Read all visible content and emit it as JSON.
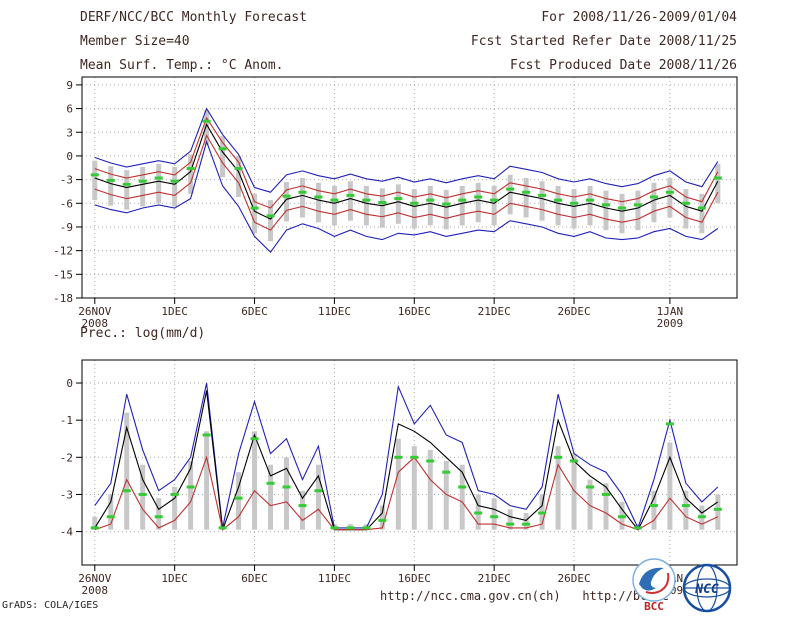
{
  "header": {
    "title": "DERF/NCC/BCC Monthly Forecast",
    "member_size": "Member Size=40",
    "for_range": "For 2008/11/26-2009/01/04",
    "refer_date": "Fcst Started Refer Date 2008/11/25",
    "produced_date": "Fcst Produced Date 2008/11/26"
  },
  "footer": {
    "grads_credit": "GrADS: COLA/IGES",
    "ncc_url": "http://ncc.cma.gov.cn(ch)",
    "bcc_url": "http://bcc.c",
    "bcc_logo_text": "BCC",
    "ncc_logo_text": "NCC"
  },
  "colors": {
    "text": "#3f2723",
    "frame": "#000000",
    "grid": "#aaaaaa",
    "bar_gray": "#c8c8c8",
    "envelope_blue": "#2020bb",
    "quartile_red": "#c03030",
    "mean_black": "#000000",
    "median_green": "#33cc33"
  },
  "chart_data": [
    {
      "type": "line",
      "title": "Mean Surf. Temp.: °C Anom.",
      "ylim": [
        -18,
        10
      ],
      "yticks": [
        9,
        6,
        3,
        0,
        -3,
        -6,
        -9,
        -12,
        -15,
        -18
      ],
      "xlim": [
        -0.8,
        40.2
      ],
      "xticks": [
        {
          "day": 0,
          "label": "26NOV",
          "sub": "2008"
        },
        {
          "day": 5,
          "label": "1DEC"
        },
        {
          "day": 10,
          "label": "6DEC"
        },
        {
          "day": 15,
          "label": "11DEC"
        },
        {
          "day": 20,
          "label": "16DEC"
        },
        {
          "day": 25,
          "label": "21DEC"
        },
        {
          "day": 30,
          "label": "26DEC"
        },
        {
          "day": 36,
          "label": "1JAN",
          "sub": "2009"
        }
      ],
      "series": {
        "bar_hi": [
          -0.6,
          -1.3,
          -1.8,
          -1.4,
          -1.0,
          -1.4,
          0.2,
          5.8,
          2.5,
          0.0,
          -4.8,
          -5.6,
          -3.3,
          -2.8,
          -3.4,
          -3.8,
          -3.2,
          -3.8,
          -4.1,
          -3.6,
          -4.2,
          -3.8,
          -4.3,
          -3.8,
          -3.4,
          -3.8,
          -2.4,
          -2.8,
          -3.2,
          -3.8,
          -4.2,
          -3.8,
          -4.4,
          -4.8,
          -4.4,
          -3.4,
          -2.8,
          -4.2,
          -4.8,
          -1.0
        ],
        "bar_lo": [
          -5.6,
          -6.3,
          -6.8,
          -6.4,
          -6.0,
          -6.4,
          -4.8,
          1.4,
          -2.7,
          -5.2,
          -9.8,
          -10.8,
          -8.3,
          -7.8,
          -8.4,
          -8.8,
          -8.2,
          -8.8,
          -9.1,
          -8.6,
          -9.2,
          -8.8,
          -9.3,
          -8.8,
          -8.4,
          -8.8,
          -7.4,
          -7.8,
          -8.2,
          -8.8,
          -9.2,
          -8.8,
          -9.4,
          -9.8,
          -9.4,
          -8.4,
          -7.8,
          -9.2,
          -9.8,
          -6.0
        ],
        "max_blue": [
          -0.2,
          -0.9,
          -1.4,
          -1.0,
          -0.6,
          -1.0,
          0.6,
          6.0,
          2.7,
          0.2,
          -4.0,
          -4.6,
          -2.4,
          -1.9,
          -2.5,
          -2.9,
          -2.3,
          -2.9,
          -3.2,
          -2.7,
          -3.3,
          -2.9,
          -3.4,
          -2.9,
          -2.5,
          -2.9,
          -1.3,
          -1.7,
          -2.1,
          -2.9,
          -3.3,
          -2.9,
          -3.5,
          -3.9,
          -3.5,
          -2.5,
          -1.9,
          -3.3,
          -3.9,
          -0.7
        ],
        "upper_red": [
          -1.6,
          -2.3,
          -2.8,
          -2.4,
          -2.0,
          -2.4,
          -0.8,
          4.8,
          1.7,
          -0.8,
          -5.8,
          -6.6,
          -4.3,
          -3.8,
          -4.4,
          -4.8,
          -4.2,
          -4.8,
          -5.1,
          -4.6,
          -5.2,
          -4.8,
          -5.3,
          -4.8,
          -4.4,
          -4.8,
          -3.4,
          -3.8,
          -4.2,
          -4.8,
          -5.2,
          -4.8,
          -5.4,
          -5.8,
          -5.4,
          -4.4,
          -3.8,
          -5.2,
          -5.8,
          -2.0
        ],
        "mean_black": [
          -2.8,
          -3.5,
          -4.0,
          -3.6,
          -3.2,
          -3.6,
          -2.0,
          4.0,
          0.5,
          -2.0,
          -7.0,
          -8.0,
          -5.5,
          -5.0,
          -5.6,
          -6.0,
          -5.4,
          -6.0,
          -6.3,
          -5.8,
          -6.4,
          -6.0,
          -6.5,
          -6.0,
          -5.6,
          -6.0,
          -4.6,
          -5.0,
          -5.4,
          -6.0,
          -6.4,
          -6.0,
          -6.6,
          -7.0,
          -6.6,
          -5.6,
          -5.0,
          -6.4,
          -7.0,
          -3.2
        ],
        "lower_red": [
          -4.2,
          -4.9,
          -5.4,
          -5.0,
          -4.6,
          -5.0,
          -3.4,
          2.6,
          -0.9,
          -3.4,
          -8.4,
          -9.4,
          -6.9,
          -6.4,
          -7.0,
          -7.4,
          -6.8,
          -7.4,
          -7.7,
          -7.2,
          -7.8,
          -7.4,
          -7.9,
          -7.4,
          -7.0,
          -7.4,
          -6.0,
          -6.4,
          -6.8,
          -7.4,
          -7.8,
          -7.4,
          -8.0,
          -8.4,
          -8.0,
          -7.0,
          -6.4,
          -7.8,
          -8.4,
          -4.6
        ],
        "min_blue": [
          -6.2,
          -6.8,
          -7.2,
          -6.6,
          -6.2,
          -6.6,
          -5.4,
          1.8,
          -3.8,
          -6.4,
          -10.2,
          -12.2,
          -9.4,
          -8.6,
          -9.2,
          -10.2,
          -9.4,
          -10.2,
          -10.6,
          -9.8,
          -10.0,
          -9.6,
          -10.2,
          -9.8,
          -9.4,
          -9.6,
          -8.2,
          -8.6,
          -9.0,
          -9.8,
          -10.2,
          -9.6,
          -10.4,
          -10.6,
          -10.4,
          -9.6,
          -9.2,
          -10.2,
          -10.6,
          -9.2
        ],
        "median_green": [
          -2.4,
          -3.1,
          -3.6,
          -3.2,
          -2.8,
          -3.2,
          -1.6,
          4.4,
          0.9,
          -1.6,
          -6.6,
          -7.6,
          -5.1,
          -4.6,
          -5.2,
          -5.6,
          -5.0,
          -5.6,
          -5.9,
          -5.4,
          -6.0,
          -5.6,
          -6.1,
          -5.6,
          -5.2,
          -5.6,
          -4.2,
          -4.6,
          -5.0,
          -5.6,
          -6.0,
          -5.6,
          -6.2,
          -6.6,
          -6.2,
          -5.2,
          -4.6,
          -6.0,
          -6.6,
          -2.8
        ]
      }
    },
    {
      "type": "line",
      "title": "Prec.: log(mm/d)",
      "ylim": [
        -4.9,
        0.62
      ],
      "yticks": [
        0,
        -1,
        -2,
        -3,
        -4
      ],
      "xlim": [
        -0.8,
        40.2
      ],
      "xticks": [
        {
          "day": 0,
          "label": "26NOV",
          "sub": "2008"
        },
        {
          "day": 5,
          "label": "1DEC"
        },
        {
          "day": 10,
          "label": "6DEC"
        },
        {
          "day": 15,
          "label": "11DEC"
        },
        {
          "day": 20,
          "label": "16DEC"
        },
        {
          "day": 25,
          "label": "21DEC"
        },
        {
          "day": 30,
          "label": "26DEC"
        },
        {
          "day": 36,
          "label": "1JAN",
          "sub": "2009"
        }
      ],
      "series": {
        "bar_hi": [
          -3.6,
          -3.0,
          -0.8,
          -2.2,
          -3.1,
          -2.8,
          -2.1,
          -1.3,
          -3.8,
          -2.4,
          -1.3,
          -2.2,
          -2.0,
          -2.9,
          -2.2,
          -3.8,
          -3.8,
          -3.8,
          -3.3,
          -1.5,
          -1.7,
          -1.8,
          -2.1,
          -2.2,
          -3.0,
          -3.1,
          -3.4,
          -3.5,
          -3.0,
          -1.7,
          -1.9,
          -2.6,
          -2.7,
          -3.2,
          -3.8,
          -2.9,
          -1.6,
          -2.9,
          -3.3,
          -3.0
        ],
        "bar_lo": -3.95,
        "max_blue": [
          -3.3,
          -2.7,
          -0.3,
          -1.8,
          -2.9,
          -2.6,
          -2.0,
          0.0,
          -3.9,
          -1.9,
          -0.5,
          -1.9,
          -1.5,
          -2.6,
          -1.7,
          -3.9,
          -3.9,
          -3.9,
          -3.0,
          -0.1,
          -1.1,
          -0.6,
          -1.4,
          -1.6,
          -2.9,
          -3.0,
          -3.3,
          -3.4,
          -2.8,
          -0.3,
          -1.9,
          -2.2,
          -2.4,
          -3.0,
          -3.9,
          -2.6,
          -1.0,
          -2.7,
          -3.2,
          -2.8
        ],
        "mean_black": [
          -3.9,
          -3.2,
          -1.2,
          -2.6,
          -3.4,
          -3.1,
          -2.3,
          -0.2,
          -3.95,
          -2.8,
          -1.4,
          -2.5,
          -2.3,
          -3.1,
          -2.5,
          -3.95,
          -3.95,
          -3.95,
          -3.5,
          -1.1,
          -1.3,
          -1.6,
          -2.0,
          -2.4,
          -3.3,
          -3.4,
          -3.6,
          -3.7,
          -3.3,
          -1.0,
          -2.1,
          -2.5,
          -2.8,
          -3.4,
          -3.95,
          -3.1,
          -2.0,
          -3.1,
          -3.5,
          -3.2
        ],
        "lower_red": [
          -3.95,
          -3.8,
          -2.6,
          -3.4,
          -3.9,
          -3.7,
          -3.2,
          -2.0,
          -3.95,
          -3.6,
          -2.9,
          -3.3,
          -3.2,
          -3.7,
          -3.4,
          -3.95,
          -3.95,
          -3.95,
          -3.9,
          -2.4,
          -2.0,
          -2.6,
          -3.0,
          -3.2,
          -3.8,
          -3.8,
          -3.9,
          -3.9,
          -3.8,
          -2.2,
          -2.9,
          -3.3,
          -3.5,
          -3.8,
          -3.95,
          -3.7,
          -3.1,
          -3.6,
          -3.8,
          -3.6
        ],
        "median_green": [
          -3.9,
          -3.6,
          -2.9,
          -3.0,
          -3.6,
          -3.0,
          -2.8,
          -1.4,
          -3.9,
          -3.1,
          -1.5,
          -2.7,
          -2.8,
          -3.3,
          -2.9,
          -3.9,
          -3.9,
          -3.9,
          -3.7,
          -2.0,
          -2.0,
          -2.1,
          -2.4,
          -2.8,
          -3.5,
          -3.6,
          -3.8,
          -3.8,
          -3.5,
          -2.0,
          -2.1,
          -2.8,
          -3.0,
          -3.6,
          -3.9,
          -3.3,
          -1.1,
          -3.3,
          -3.6,
          -3.4
        ]
      }
    }
  ]
}
